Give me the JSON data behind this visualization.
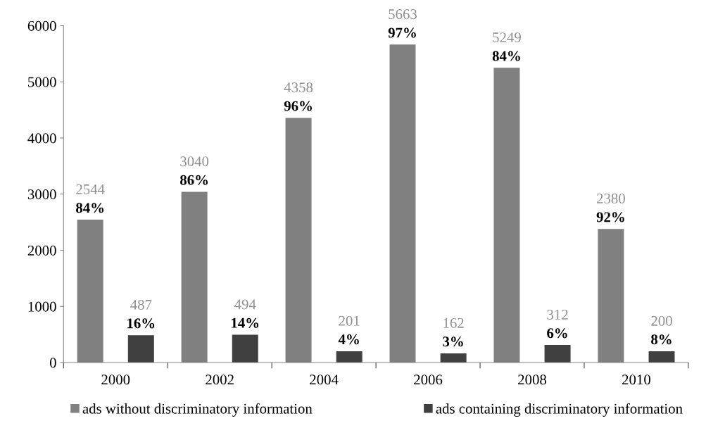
{
  "chart_data": {
    "type": "bar",
    "categories": [
      "2000",
      "2002",
      "2004",
      "2006",
      "2008",
      "2010"
    ],
    "series": [
      {
        "name": "ads without discriminatory information",
        "color": "#808080",
        "values": [
          2544,
          3040,
          4358,
          5663,
          5249,
          2380
        ],
        "value_labels": [
          "2544\n84%",
          "3040\n86%",
          "4358\n96%",
          "5663\n97%",
          "5249\n84%",
          "2380\n92%"
        ]
      },
      {
        "name": "ads containing discriminatory information",
        "color": "#404040",
        "values": [
          487,
          494,
          201,
          162,
          312,
          200
        ],
        "value_labels": [
          "487\n16%",
          "494\n14%",
          "201\n4%",
          "162\n3%",
          "312\n6%",
          "200\n8%"
        ]
      }
    ],
    "ylim": [
      0,
      6000
    ],
    "yticks": [
      0,
      1000,
      2000,
      3000,
      4000,
      5000,
      6000
    ],
    "grid": false,
    "legend": "bottom"
  }
}
